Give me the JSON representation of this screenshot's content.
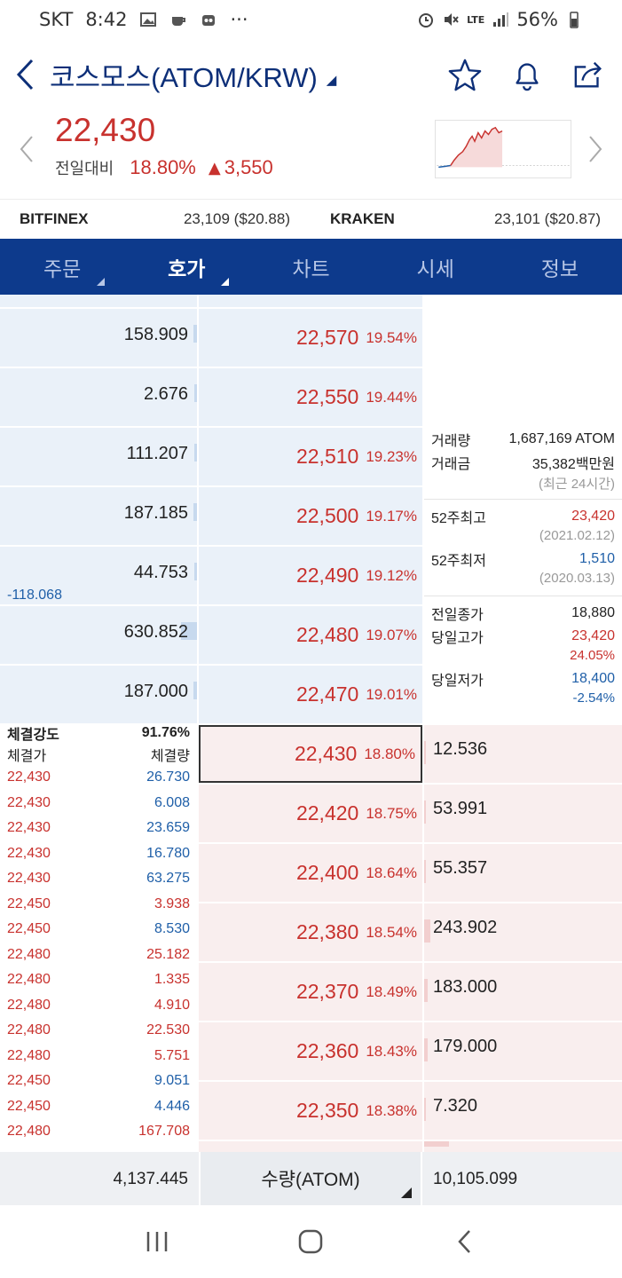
{
  "status": {
    "carrier": "SKT",
    "time": "8:42",
    "dots": "···",
    "network": "LTE",
    "battery": "56%"
  },
  "header": {
    "title": "코스모스(ATOM/KRW)"
  },
  "price": {
    "current": "22,430",
    "label": "전일대비",
    "change_pct": "18.80%",
    "change_amt": "3,550"
  },
  "exchanges": [
    {
      "name": "BITFINEX",
      "value": "23,109 ($20.88)"
    },
    {
      "name": "KRAKEN",
      "value": "23,101 ($20.87)"
    }
  ],
  "tabs": [
    {
      "label": "주문",
      "caret": true,
      "active": false
    },
    {
      "label": "호가",
      "caret": true,
      "active": true
    },
    {
      "label": "차트",
      "caret": false,
      "active": false
    },
    {
      "label": "시세",
      "caret": false,
      "active": false
    },
    {
      "label": "정보",
      "caret": false,
      "active": false
    }
  ],
  "asks": [
    {
      "qty": "158.909",
      "price": "22,570",
      "pct": "19.54%",
      "bar": 0.02
    },
    {
      "qty": "2.676",
      "price": "22,550",
      "pct": "19.44%",
      "bar": 0.0
    },
    {
      "qty": "111.207",
      "price": "22,510",
      "pct": "19.23%",
      "bar": 0.015
    },
    {
      "qty": "187.185",
      "price": "22,500",
      "pct": "19.17%",
      "bar": 0.02
    },
    {
      "qty": "44.753",
      "price": "22,490",
      "pct": "19.12%",
      "bar": 0.01,
      "delta": "-118.068"
    },
    {
      "qty": "630.852",
      "price": "22,480",
      "pct": "19.07%",
      "bar": 0.08
    },
    {
      "qty": "187.000",
      "price": "22,470",
      "pct": "19.01%",
      "bar": 0.02
    }
  ],
  "current": {
    "price": "22,430",
    "pct": "18.80%"
  },
  "bids": [
    {
      "qty": "12.536",
      "price": "22,430",
      "pct": "18.80%",
      "bar": 0.0
    },
    {
      "qty": "53.991",
      "price": "22,420",
      "pct": "18.75%",
      "bar": 0.0
    },
    {
      "qty": "55.357",
      "price": "22,400",
      "pct": "18.64%",
      "bar": 0.01
    },
    {
      "qty": "243.902",
      "price": "22,380",
      "pct": "18.54%",
      "bar": 0.03
    },
    {
      "qty": "183.000",
      "price": "22,370",
      "pct": "18.49%",
      "bar": 0.02
    },
    {
      "qty": "179.000",
      "price": "22,360",
      "pct": "18.43%",
      "bar": 0.02
    },
    {
      "qty": "7.320",
      "price": "22,350",
      "pct": "18.38%",
      "bar": 0.0
    }
  ],
  "info": {
    "volume_label": "거래량",
    "volume": "1,687,169 ATOM",
    "amount_label": "거래금",
    "amount": "35,382백만원",
    "period": "(최근 24시간)",
    "high52_label": "52주최고",
    "high52": "23,420",
    "high52_date": "(2021.02.12)",
    "low52_label": "52주최저",
    "low52": "1,510",
    "low52_date": "(2020.03.13)",
    "prev_close_label": "전일종가",
    "prev_close": "18,880",
    "day_high_label": "당일고가",
    "day_high": "23,420",
    "day_high_pct": "24.05%",
    "day_low_label": "당일저가",
    "day_low": "18,400",
    "day_low_pct": "-2.54%"
  },
  "trades": {
    "strength_label": "체결강도",
    "strength": "91.76%",
    "price_header": "체결가",
    "qty_header": "체결량",
    "rows": [
      {
        "price": "22,430",
        "qty": "26.730",
        "dir": "down"
      },
      {
        "price": "22,430",
        "qty": "6.008",
        "dir": "down"
      },
      {
        "price": "22,430",
        "qty": "23.659",
        "dir": "down"
      },
      {
        "price": "22,430",
        "qty": "16.780",
        "dir": "down"
      },
      {
        "price": "22,430",
        "qty": "63.275",
        "dir": "down"
      },
      {
        "price": "22,450",
        "qty": "3.938",
        "dir": "up"
      },
      {
        "price": "22,450",
        "qty": "8.530",
        "dir": "down"
      },
      {
        "price": "22,480",
        "qty": "25.182",
        "dir": "up"
      },
      {
        "price": "22,480",
        "qty": "1.335",
        "dir": "up"
      },
      {
        "price": "22,480",
        "qty": "4.910",
        "dir": "up"
      },
      {
        "price": "22,480",
        "qty": "22.530",
        "dir": "up"
      },
      {
        "price": "22,480",
        "qty": "5.751",
        "dir": "up"
      },
      {
        "price": "22,450",
        "qty": "9.051",
        "dir": "down"
      },
      {
        "price": "22,450",
        "qty": "4.446",
        "dir": "down"
      },
      {
        "price": "22,480",
        "qty": "167.708",
        "dir": "up"
      }
    ]
  },
  "summary": {
    "ask_total": "4,137.445",
    "unit_label": "수량(ATOM)",
    "bid_total": "10,105.099"
  }
}
